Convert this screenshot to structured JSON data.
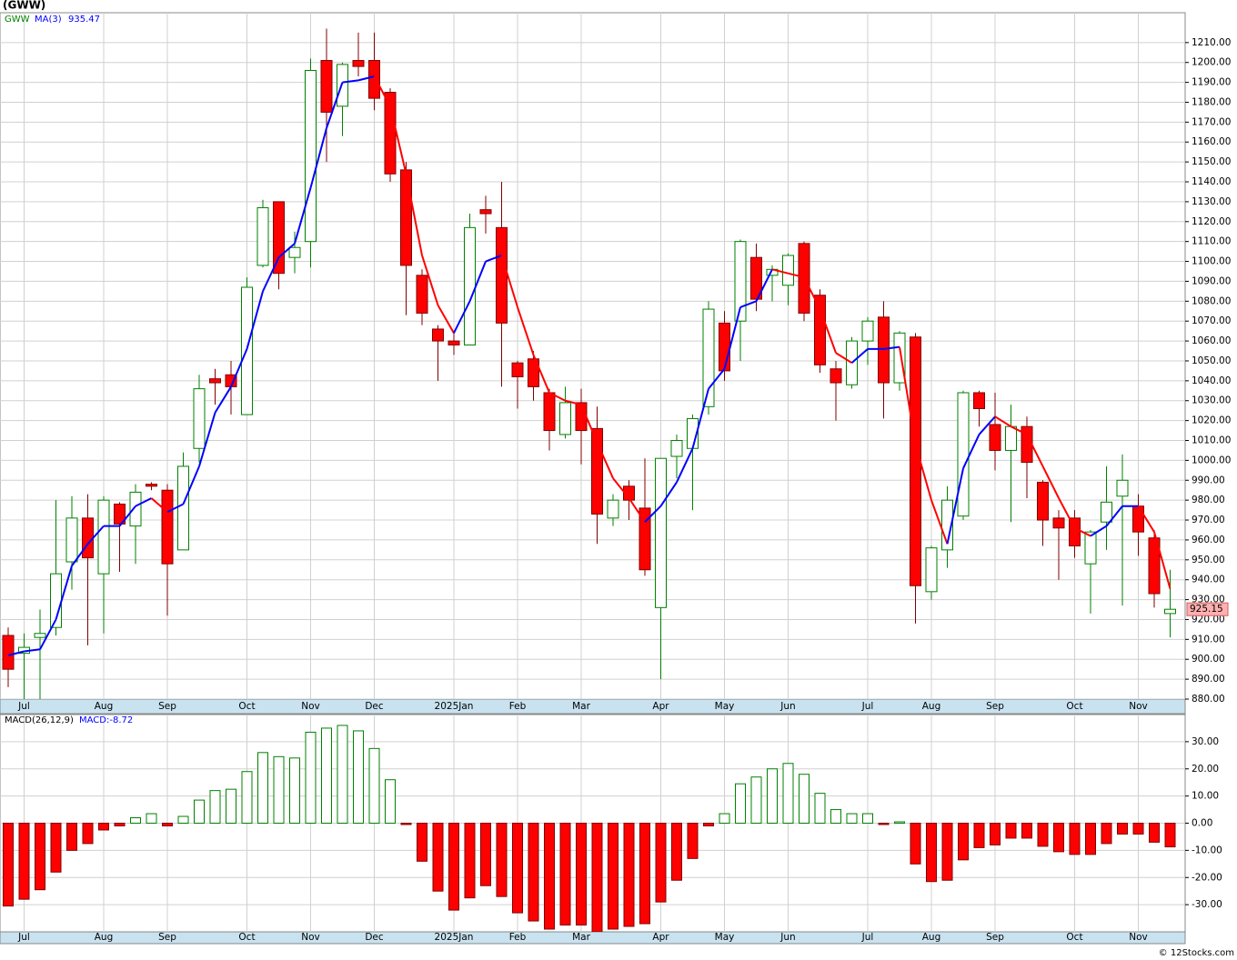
{
  "chart_data": [
    {
      "type": "candlestick",
      "title": "(GWW)",
      "categories": [
        null,
        "Jul",
        null,
        null,
        null,
        null,
        "Aug",
        null,
        null,
        null,
        "Sep",
        null,
        null,
        null,
        null,
        "Oct",
        null,
        null,
        null,
        "Nov",
        null,
        null,
        null,
        "Dec",
        null,
        null,
        null,
        null,
        "2025Jan",
        null,
        null,
        null,
        "Feb",
        null,
        null,
        null,
        "Mar",
        null,
        null,
        null,
        null,
        "Apr",
        null,
        null,
        null,
        "May",
        null,
        null,
        null,
        "Jun",
        null,
        null,
        null,
        null,
        "Jul",
        null,
        null,
        null,
        "Aug",
        null,
        null,
        null,
        "Sep",
        null,
        null,
        null,
        null,
        "Oct",
        null,
        null,
        null,
        "Nov",
        null,
        null
      ],
      "series": [
        {
          "name": "GWW",
          "color": "#008000",
          "down_color": "#ff0000",
          "last_label": "925.15",
          "open": [
            912,
            903,
            911,
            916,
            949,
            971,
            943,
            978,
            967,
            988,
            985,
            955,
            1006,
            1041,
            1043,
            1023,
            1098,
            1130,
            1102,
            1110,
            1201,
            1178,
            1201,
            1201,
            1185,
            1146,
            1093,
            1066,
            1060,
            1058,
            1126,
            1117,
            1049,
            1051,
            1034,
            1013,
            1029,
            1016,
            971,
            987,
            976,
            926,
            1002,
            1006,
            1027,
            1069,
            1070,
            1102,
            1093,
            1088,
            1109,
            1083,
            1046,
            1038,
            1060,
            1072,
            1039,
            1062,
            934,
            955,
            972,
            1034,
            1018,
            1005,
            1017,
            989,
            971,
            971,
            948,
            969,
            982,
            977,
            961,
            923
          ],
          "high": [
            916,
            913,
            925,
            980,
            982,
            983,
            982,
            979,
            988,
            989,
            988,
            1004,
            1043,
            1046,
            1050,
            1092,
            1131,
            1130,
            1115,
            1202,
            1217,
            1200,
            1215,
            1215,
            1187,
            1150,
            1096,
            1068,
            1064,
            1124,
            1133,
            1140,
            1050,
            1055,
            1036,
            1037,
            1036,
            1027,
            983,
            990,
            1001,
            1001,
            1013,
            1023,
            1080,
            1075,
            1111,
            1109,
            1098,
            1104,
            1110,
            1086,
            1050,
            1062,
            1072,
            1080,
            1065,
            1064,
            957,
            987,
            1035,
            1035,
            1034,
            1028,
            1022,
            990,
            975,
            975,
            965,
            997,
            1003,
            983,
            965,
            945
          ],
          "low": [
            886,
            878,
            878,
            912,
            935,
            907,
            913,
            944,
            948,
            985,
            922,
            955,
            999,
            1028,
            1023,
            1023,
            1097,
            1086,
            1094,
            1097,
            1150,
            1163,
            1193,
            1176,
            1140,
            1073,
            1068,
            1040,
            1053,
            1058,
            1114,
            1037,
            1026,
            1030,
            1005,
            1011,
            998,
            958,
            967,
            970,
            942,
            890,
            991,
            975,
            1023,
            1040,
            1050,
            1075,
            1080,
            1078,
            1070,
            1044,
            1020,
            1036,
            1048,
            1021,
            1035,
            918,
            930,
            946,
            970,
            1017,
            995,
            969,
            981,
            957,
            940,
            951,
            923,
            955,
            927,
            952,
            926,
            911
          ],
          "close": [
            895,
            906,
            913,
            943,
            971,
            951,
            980,
            968,
            984,
            987,
            948,
            997,
            1036,
            1039,
            1037,
            1087,
            1127,
            1094,
            1107,
            1196,
            1175,
            1199,
            1198,
            1182,
            1144,
            1098,
            1074,
            1060,
            1058,
            1117,
            1124,
            1069,
            1042,
            1037,
            1015,
            1029,
            1015,
            973,
            980,
            980,
            945,
            1001,
            1010,
            1021,
            1076,
            1045,
            1110,
            1081,
            1096,
            1103,
            1074,
            1048,
            1039,
            1060,
            1070,
            1039,
            1064,
            937,
            956,
            980,
            1034,
            1026,
            1005,
            1017,
            999,
            970,
            966,
            957,
            964,
            979,
            990,
            964,
            933,
            925.15
          ]
        },
        {
          "name": "MA(3)",
          "color": "#0000ff",
          "down_color": "#ff0000",
          "last_label": "935.47",
          "values": [
            902,
            904,
            905,
            920,
            947,
            958,
            967,
            967,
            977,
            981,
            974,
            978,
            997,
            1024,
            1037,
            1056,
            1085,
            1102,
            1109,
            1137,
            1167,
            1190,
            1191,
            1193,
            1178,
            1144,
            1103,
            1078,
            1064,
            1080,
            1100,
            1103,
            1077,
            1053,
            1034,
            1030,
            1028,
            1009,
            991,
            981,
            969,
            977,
            989,
            1006,
            1036,
            1046,
            1077,
            1080,
            1096,
            1094,
            1092,
            1076,
            1054,
            1049,
            1056,
            1056,
            1057,
            1008,
            980,
            958,
            996,
            1013,
            1022,
            1017,
            1013,
            997,
            981,
            966,
            962,
            967,
            977,
            977,
            964,
            935.47
          ]
        }
      ],
      "ylim": [
        880,
        1225
      ],
      "yticks": [
        {
          "value": 880,
          "label": "880.00"
        },
        {
          "value": 890,
          "label": "890.00"
        },
        {
          "value": 900,
          "label": "900.00"
        },
        {
          "value": 910,
          "label": "910.00"
        },
        {
          "value": 920,
          "label": "920.00"
        },
        {
          "value": 930,
          "label": "930.00"
        },
        {
          "value": 940,
          "label": "940.00"
        },
        {
          "value": 950,
          "label": "950.00"
        },
        {
          "value": 960,
          "label": "960.00"
        },
        {
          "value": 970,
          "label": "970.00"
        },
        {
          "value": 980,
          "label": "980.00"
        },
        {
          "value": 990,
          "label": "990.00"
        },
        {
          "value": 1000,
          "label": "1000.00"
        },
        {
          "value": 1010,
          "label": "1010.00"
        },
        {
          "value": 1020,
          "label": "1020.00"
        },
        {
          "value": 1030,
          "label": "1030.00"
        },
        {
          "value": 1040,
          "label": "1040.00"
        },
        {
          "value": 1050,
          "label": "1050.00"
        },
        {
          "value": 1060,
          "label": "1060.00"
        },
        {
          "value": 1070,
          "label": "1070.00"
        },
        {
          "value": 1080,
          "label": "1080.00"
        },
        {
          "value": 1090,
          "label": "1090.00"
        },
        {
          "value": 1100,
          "label": "1100.00"
        },
        {
          "value": 1110,
          "label": "1110.00"
        },
        {
          "value": 1120,
          "label": "1120.00"
        },
        {
          "value": 1130,
          "label": "1130.00"
        },
        {
          "value": 1140,
          "label": "1140.00"
        },
        {
          "value": 1150,
          "label": "1150.00"
        },
        {
          "value": 1160,
          "label": "1160.00"
        },
        {
          "value": 1170,
          "label": "1170.00"
        },
        {
          "value": 1180,
          "label": "1180.00"
        },
        {
          "value": 1190,
          "label": "1190.00"
        },
        {
          "value": 1200,
          "label": "1200.00"
        },
        {
          "value": 1210,
          "label": "1210.00"
        }
      ],
      "grid": true
    },
    {
      "type": "bar",
      "title": "MACD(26,12,9)",
      "categories": [
        null,
        "Jul",
        null,
        null,
        null,
        null,
        "Aug",
        null,
        null,
        null,
        "Sep",
        null,
        null,
        null,
        null,
        "Oct",
        null,
        null,
        null,
        "Nov",
        null,
        null,
        null,
        "Dec",
        null,
        null,
        null,
        null,
        "2025Jan",
        null,
        null,
        null,
        "Feb",
        null,
        null,
        null,
        "Mar",
        null,
        null,
        null,
        null,
        "Apr",
        null,
        null,
        null,
        "May",
        null,
        null,
        null,
        "Jun",
        null,
        null,
        null,
        null,
        "Jul",
        null,
        null,
        null,
        "Aug",
        null,
        null,
        null,
        "Sep",
        null,
        null,
        null,
        null,
        "Oct",
        null,
        null,
        null,
        "Nov",
        null,
        null
      ],
      "series": [
        {
          "name": "MACD:-8.72",
          "color": "#008000",
          "down_color": "#ff0000",
          "values": [
            -30.5,
            -28,
            -24.5,
            -18,
            -10,
            -7.5,
            -2.5,
            -1,
            2,
            3.5,
            -1,
            2.5,
            8.5,
            12,
            12.5,
            19,
            26,
            24.5,
            24,
            33.5,
            35,
            36,
            34,
            27.5,
            16,
            -0.5,
            -14,
            -25,
            -32,
            -27.5,
            -23,
            -27,
            -33,
            -36,
            -39,
            -37.5,
            -37.5,
            -40,
            -39,
            -38,
            -37,
            -29,
            -21,
            -13,
            -1,
            3.5,
            14.5,
            17,
            20,
            22,
            18,
            11,
            5,
            3.5,
            3.5,
            -0.5,
            0.5,
            -15,
            -21.5,
            -21,
            -13.5,
            -9,
            -8,
            -5.5,
            -5.5,
            -8.5,
            -10.5,
            -11.5,
            -11.5,
            -7.5,
            -4,
            -4,
            -7,
            -8.72
          ]
        }
      ],
      "ylim": [
        -40,
        40
      ],
      "yticks": [
        {
          "value": 30,
          "label": "30.00"
        },
        {
          "value": 20,
          "label": "20.00"
        },
        {
          "value": 10,
          "label": "10.00"
        },
        {
          "value": 0,
          "label": "0.00"
        },
        {
          "value": -10,
          "label": "-10.00"
        },
        {
          "value": -20,
          "label": "-20.00"
        },
        {
          "value": -30,
          "label": "-30.00"
        }
      ],
      "grid": true
    }
  ],
  "footer": "© 12Stocks.com"
}
